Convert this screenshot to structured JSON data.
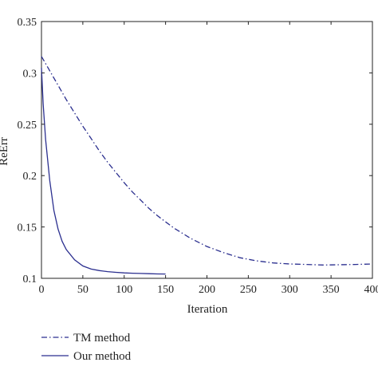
{
  "chart_data": {
    "type": "line",
    "title": "",
    "xlabel": "Iteration",
    "ylabel": "ReErr",
    "xlim": [
      0,
      400
    ],
    "ylim": [
      0.1,
      0.35
    ],
    "xticks": [
      "0",
      "50",
      "100",
      "150",
      "200",
      "250",
      "300",
      "350",
      "400"
    ],
    "yticks": [
      "0.1",
      "0.15",
      "0.2",
      "0.25",
      "0.3",
      "0.35"
    ],
    "grid": false,
    "legend_position": "bottom-left, below plot",
    "series": [
      {
        "name": "TM method",
        "style": "dash-dot",
        "color": "#2b2f8f",
        "x": [
          0,
          10,
          20,
          30,
          40,
          50,
          60,
          70,
          80,
          90,
          100,
          110,
          120,
          130,
          140,
          150,
          160,
          170,
          180,
          190,
          200,
          220,
          240,
          260,
          280,
          300,
          320,
          340,
          360,
          380,
          400
        ],
        "y": [
          0.316,
          0.302,
          0.288,
          0.274,
          0.261,
          0.248,
          0.236,
          0.224,
          0.213,
          0.203,
          0.193,
          0.184,
          0.176,
          0.168,
          0.161,
          0.155,
          0.149,
          0.144,
          0.139,
          0.135,
          0.131,
          0.125,
          0.12,
          0.117,
          0.115,
          0.114,
          0.1135,
          0.113,
          0.1132,
          0.1135,
          0.114
        ]
      },
      {
        "name": "Our method",
        "style": "solid",
        "color": "#2b2f8f",
        "x": [
          0,
          2,
          5,
          10,
          15,
          20,
          25,
          30,
          40,
          50,
          60,
          70,
          80,
          90,
          100,
          110,
          120,
          130,
          140,
          150
        ],
        "y": [
          0.305,
          0.27,
          0.235,
          0.195,
          0.166,
          0.148,
          0.136,
          0.128,
          0.118,
          0.112,
          0.109,
          0.1075,
          0.1065,
          0.1058,
          0.1053,
          0.105,
          0.1047,
          0.1045,
          0.1043,
          0.1042
        ]
      }
    ]
  }
}
